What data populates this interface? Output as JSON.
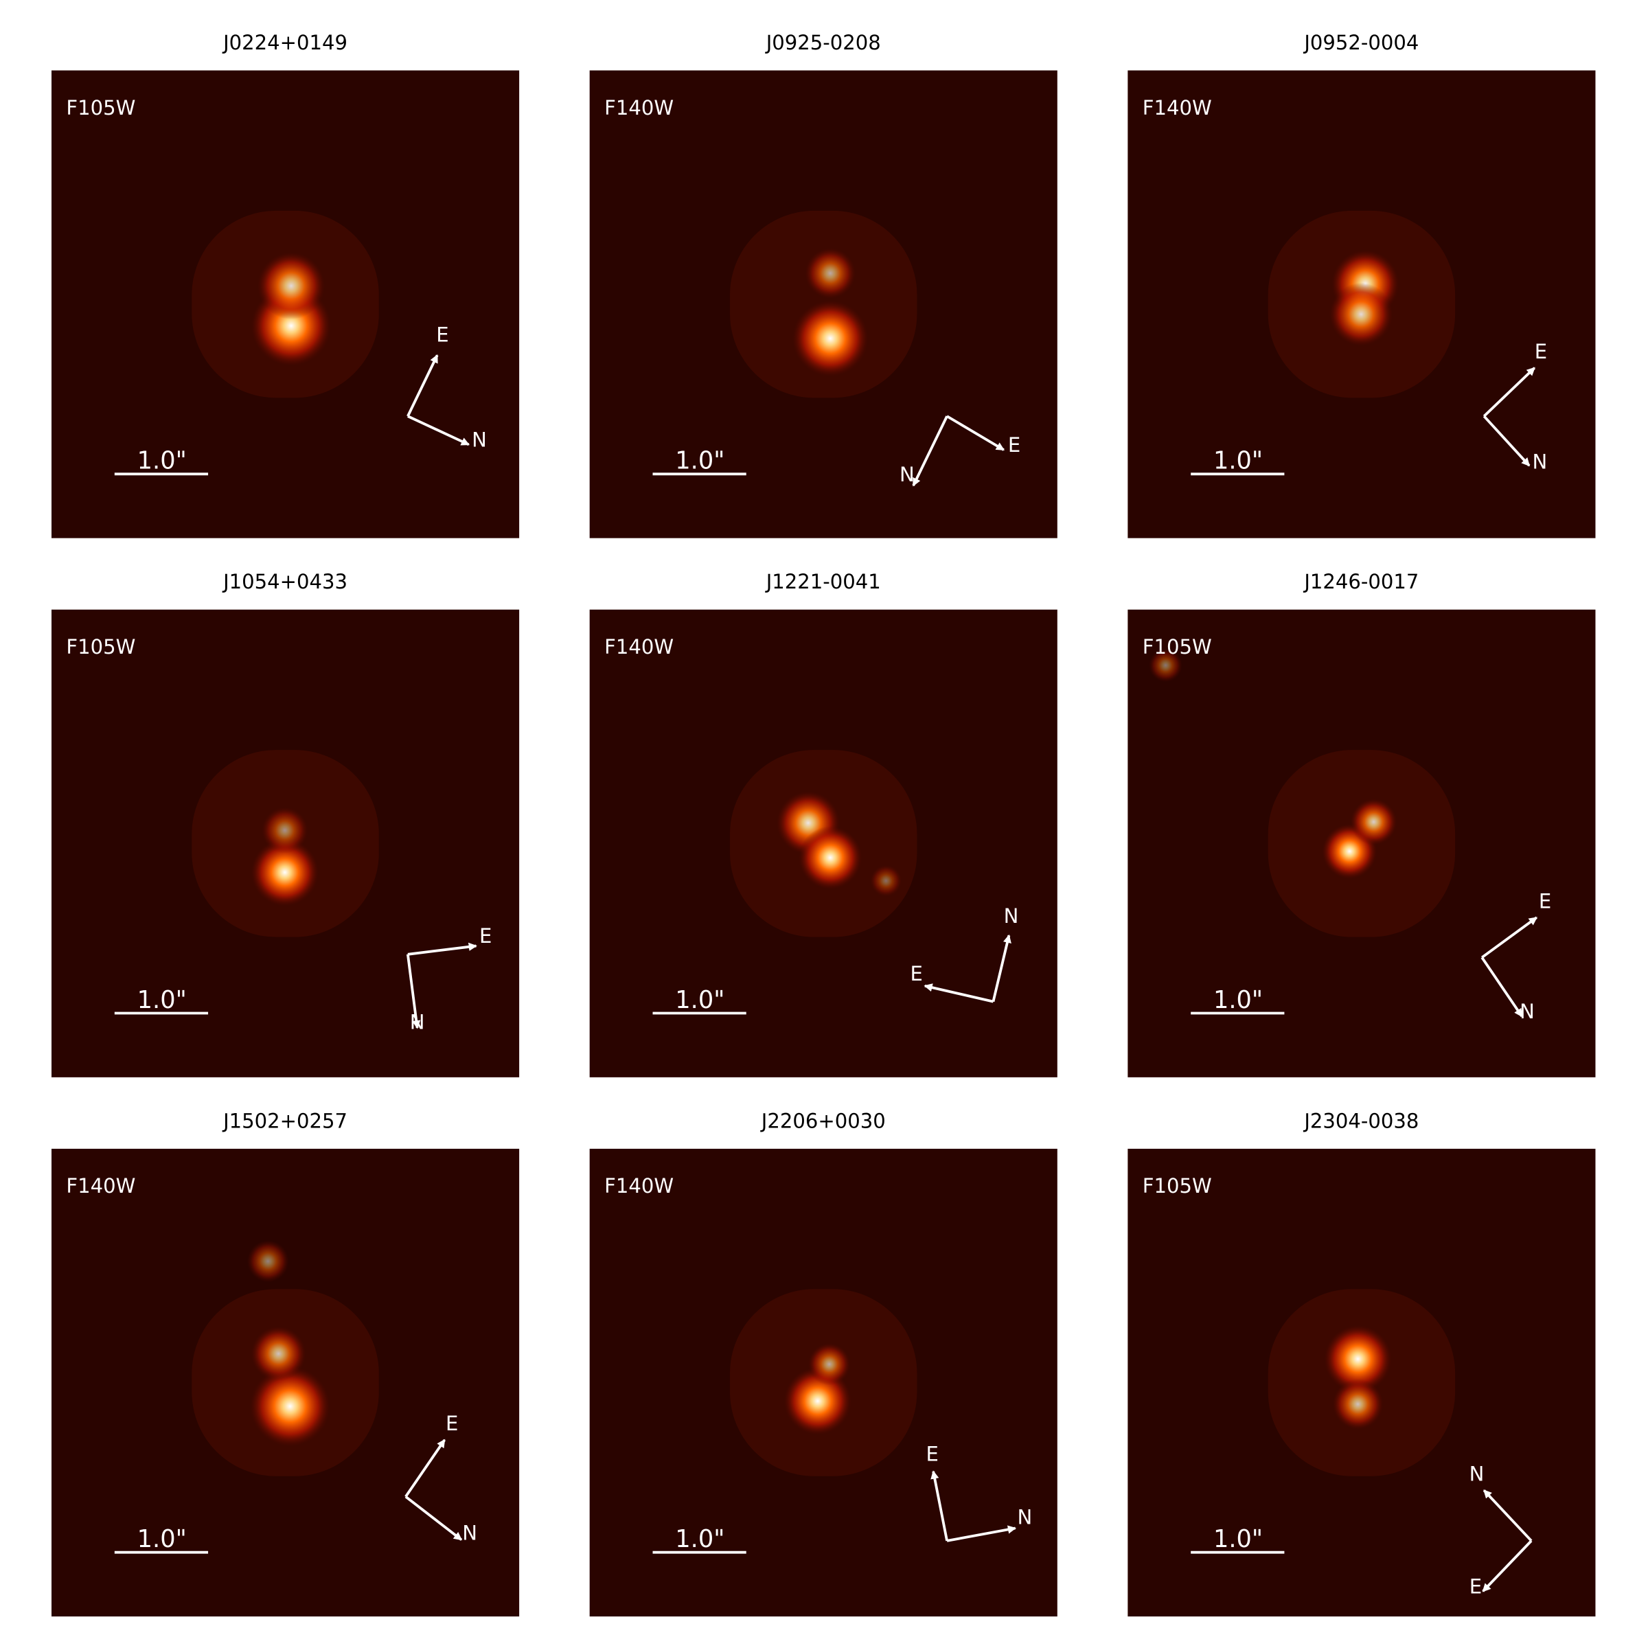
{
  "panels": [
    {
      "title": "J0224+0149",
      "filter": "F105W",
      "scale": "1.0\"",
      "compass": {
        "e": "E",
        "n": "N"
      }
    },
    {
      "title": "J0925-0208",
      "filter": "F140W",
      "scale": "1.0\"",
      "compass": {
        "e": "E",
        "n": "N"
      }
    },
    {
      "title": "J0952-0004",
      "filter": "F140W",
      "scale": "1.0\"",
      "compass": {
        "e": "E",
        "n": "N"
      }
    },
    {
      "title": "J1054+0433",
      "filter": "F105W",
      "scale": "1.0\"",
      "compass": {
        "e": "E",
        "n": "N"
      }
    },
    {
      "title": "J1221-0041",
      "filter": "F140W",
      "scale": "1.0\"",
      "compass": {
        "e": "E",
        "n": "N"
      }
    },
    {
      "title": "J1246-0017",
      "filter": "F105W",
      "scale": "1.0\"",
      "compass": {
        "e": "E",
        "n": "N"
      }
    },
    {
      "title": "J1502+0257",
      "filter": "F140W",
      "scale": "1.0\"",
      "compass": {
        "e": "E",
        "n": "N"
      }
    },
    {
      "title": "J2206+0030",
      "filter": "F140W",
      "scale": "1.0\"",
      "compass": {
        "e": "E",
        "n": "N"
      }
    },
    {
      "title": "J2304-0038",
      "filter": "F105W",
      "scale": "1.0\"",
      "compass": {
        "e": "E",
        "n": "N"
      }
    }
  ]
}
